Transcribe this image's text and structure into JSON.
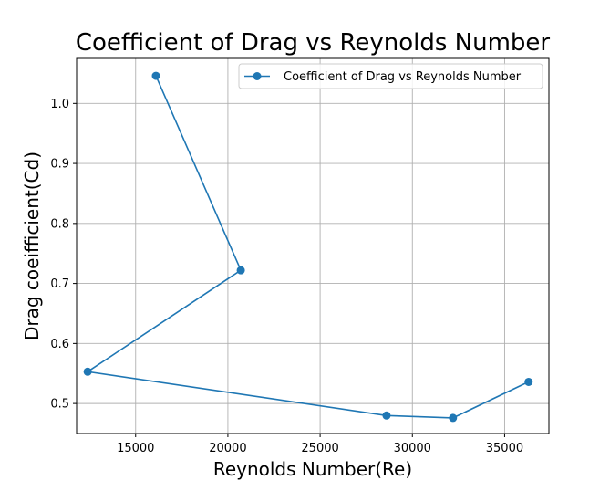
{
  "chart_data": {
    "type": "line",
    "title": "Coefficient of Drag vs Reynolds Number",
    "xlabel": "Reynolds Number(Re)",
    "ylabel": "Drag coeifficient(Cd)",
    "xlim": [
      11800,
      37400
    ],
    "ylim": [
      0.45,
      1.075
    ],
    "xticks": [
      15000,
      20000,
      25000,
      30000,
      35000
    ],
    "yticks": [
      0.5,
      0.6,
      0.7,
      0.8,
      0.9,
      1.0
    ],
    "xtick_labels": [
      "15000",
      "20000",
      "25000",
      "30000",
      "35000"
    ],
    "ytick_labels": [
      "0.5",
      "0.6",
      "0.7",
      "0.8",
      "0.9",
      "1.0"
    ],
    "grid": true,
    "legend_position": "top-right",
    "series": [
      {
        "name": "Coefficient of Drag vs Reynolds Number",
        "color": "#1f77b4",
        "marker": "circle",
        "x": [
          16100,
          20700,
          12400,
          28600,
          32200,
          36300
        ],
        "y": [
          1.046,
          0.722,
          0.553,
          0.48,
          0.476,
          0.536
        ]
      }
    ]
  }
}
